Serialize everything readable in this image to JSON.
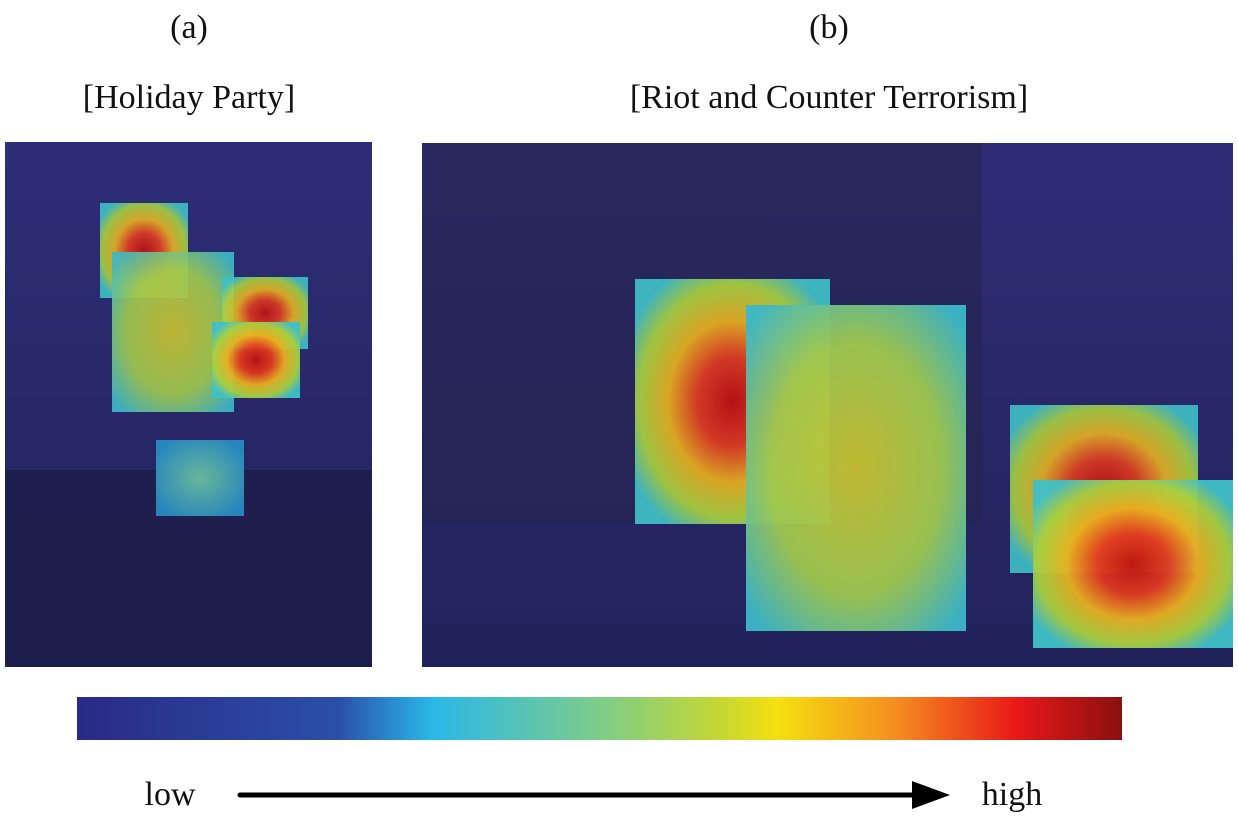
{
  "panels": [
    {
      "label": "(a)",
      "caption": "[Holiday Party]"
    },
    {
      "label": "(b)",
      "caption": "[Riot and Counter Terrorism]"
    }
  ],
  "colorbar": {
    "low": "low",
    "high": "high"
  }
}
